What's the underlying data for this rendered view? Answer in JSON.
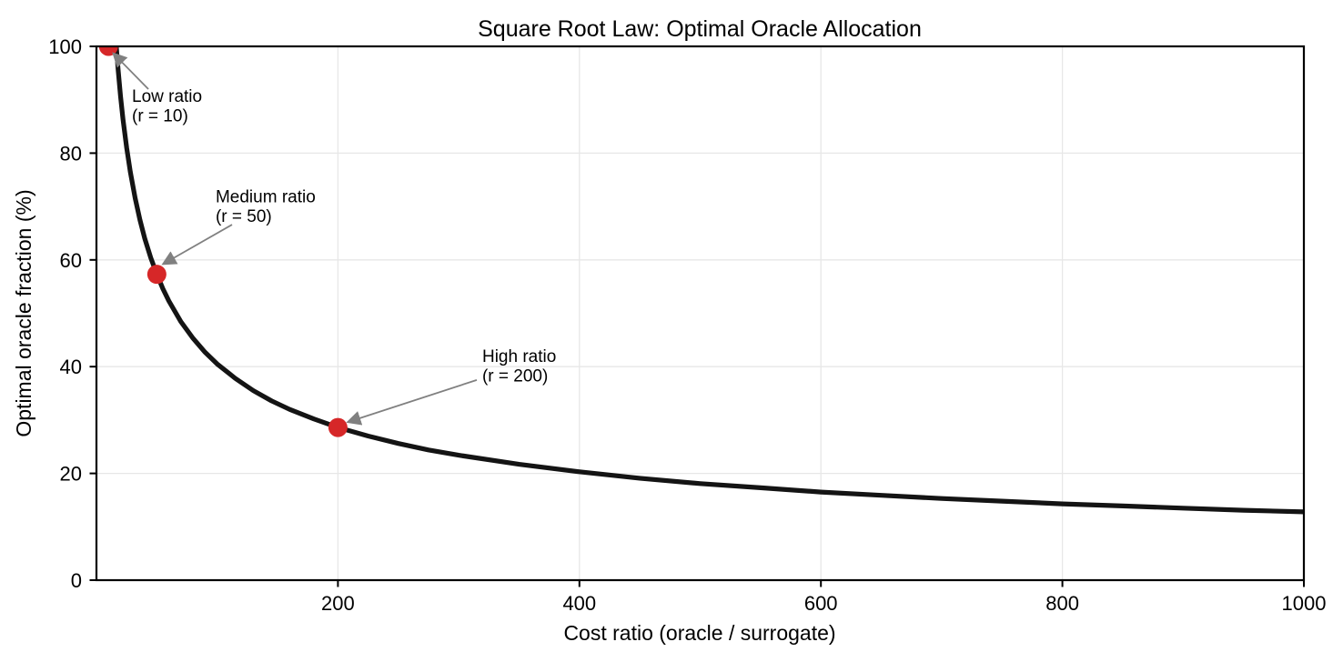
{
  "chart_data": {
    "type": "line",
    "title": "Square Root Law: Optimal Oracle Allocation",
    "xlabel": "Cost ratio (oracle / surrogate)",
    "ylabel": "Optimal oracle fraction (%)",
    "xlim": [
      0,
      1000
    ],
    "ylim": [
      0,
      100
    ],
    "x_ticks": [
      200,
      400,
      600,
      800,
      1000
    ],
    "y_ticks": [
      0,
      20,
      40,
      60,
      80,
      100
    ],
    "grid": true,
    "legend": "none",
    "curve": {
      "name": "optimal-oracle-fraction",
      "formula": "f(r) = min(100, 405 / sqrt(r)), r from 10 to 1000",
      "points": [
        [
          10,
          100
        ],
        [
          13,
          100
        ],
        [
          16.4,
          100
        ],
        [
          18,
          95.5
        ],
        [
          20,
          90.6
        ],
        [
          22,
          86.3
        ],
        [
          25,
          81.0
        ],
        [
          28,
          76.5
        ],
        [
          32,
          71.6
        ],
        [
          36,
          67.5
        ],
        [
          40,
          64.0
        ],
        [
          45,
          60.4
        ],
        [
          50,
          57.3
        ],
        [
          55,
          54.6
        ],
        [
          60,
          52.3
        ],
        [
          70,
          48.4
        ],
        [
          80,
          45.3
        ],
        [
          90,
          42.7
        ],
        [
          100,
          40.5
        ],
        [
          115,
          37.8
        ],
        [
          130,
          35.5
        ],
        [
          145,
          33.6
        ],
        [
          160,
          32.0
        ],
        [
          180,
          30.2
        ],
        [
          200,
          28.6
        ],
        [
          225,
          27.0
        ],
        [
          250,
          25.6
        ],
        [
          275,
          24.4
        ],
        [
          300,
          23.4
        ],
        [
          350,
          21.7
        ],
        [
          400,
          20.3
        ],
        [
          450,
          19.1
        ],
        [
          500,
          18.1
        ],
        [
          550,
          17.3
        ],
        [
          600,
          16.5
        ],
        [
          650,
          15.9
        ],
        [
          700,
          15.3
        ],
        [
          750,
          14.8
        ],
        [
          800,
          14.3
        ],
        [
          850,
          13.9
        ],
        [
          900,
          13.5
        ],
        [
          950,
          13.1
        ],
        [
          1000,
          12.8
        ]
      ]
    },
    "highlight_points": [
      {
        "r": 10,
        "f": 100
      },
      {
        "r": 50,
        "f": 57.3
      },
      {
        "r": 200,
        "f": 28.6
      }
    ],
    "annotations": [
      {
        "label_lines": [
          "Low ratio",
          "(r = 10)"
        ],
        "point": [
          10,
          100
        ],
        "text_pos": [
          29.4,
          89.6
        ],
        "arrow_from": [
          43.0,
          92.0
        ],
        "arrow_to": [
          13.9,
          98.7
        ]
      },
      {
        "label_lines": [
          "Medium ratio",
          "(r = 50)"
        ],
        "point": [
          50,
          57.3
        ],
        "text_pos": [
          98.7,
          70.8
        ],
        "arrow_from": [
          112.3,
          66.6
        ],
        "arrow_to": [
          55.0,
          59.2
        ]
      },
      {
        "label_lines": [
          "High ratio",
          "(r = 200)"
        ],
        "point": [
          200,
          28.6
        ],
        "text_pos": [
          319.5,
          40.9
        ],
        "arrow_from": [
          315.0,
          37.5
        ],
        "arrow_to": [
          208.0,
          29.6
        ]
      }
    ],
    "colors": {
      "curve": "#141414",
      "points": "#d62728",
      "grid": "#e7e7e7",
      "frame": "#000000",
      "annotation_arrow": "#808080",
      "text": "#000000",
      "background": "#ffffff"
    }
  }
}
